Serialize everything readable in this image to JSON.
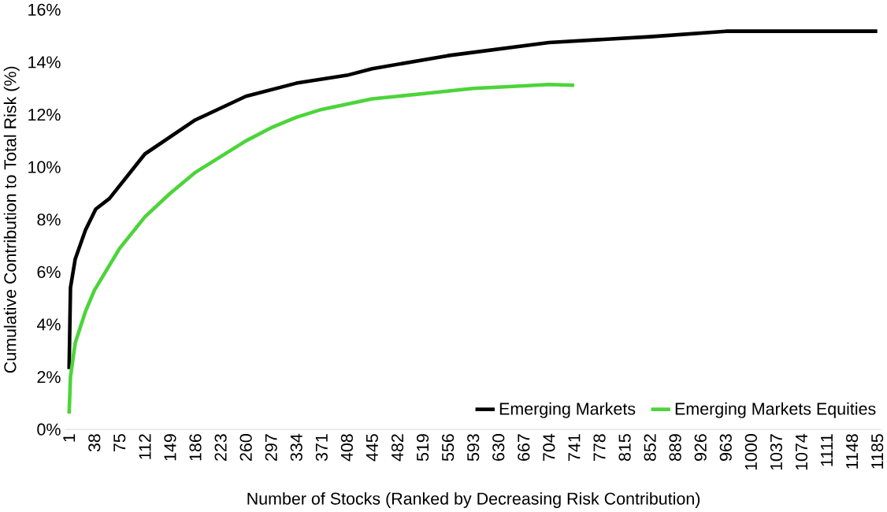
{
  "chart_data": {
    "type": "line",
    "xlabel": "Number of Stocks (Ranked by Decreasing Risk Contribution)",
    "ylabel": "Cumulative Contribution to Total Risk (%)",
    "xlim": [
      -5,
      1192
    ],
    "ylim": [
      0,
      16
    ],
    "xticks": [
      1,
      38,
      75,
      112,
      149,
      186,
      223,
      260,
      297,
      334,
      371,
      408,
      445,
      482,
      519,
      556,
      593,
      630,
      667,
      704,
      741,
      778,
      815,
      852,
      889,
      926,
      963,
      1000,
      1037,
      1074,
      1111,
      1148,
      1185
    ],
    "yticks": [
      {
        "value": 0,
        "label": "0%"
      },
      {
        "value": 2,
        "label": "2%"
      },
      {
        "value": 4,
        "label": "4%"
      },
      {
        "value": 6,
        "label": "6%"
      },
      {
        "value": 8,
        "label": "8%"
      },
      {
        "value": 10,
        "label": "10%"
      },
      {
        "value": 12,
        "label": "12%"
      },
      {
        "value": 14,
        "label": "14%"
      },
      {
        "value": 16,
        "label": "16%"
      }
    ],
    "grid": false,
    "legend": "bottom right",
    "marker": "none",
    "line_style": "solid",
    "series": [
      {
        "name": "Emerging Markets",
        "color": "#000000",
        "x": [
          1,
          3,
          10,
          25,
          40,
          60,
          112,
          186,
          260,
          334,
          408,
          445,
          556,
          704,
          852,
          963,
          1185
        ],
        "values": [
          2.3,
          5.4,
          6.5,
          7.6,
          8.4,
          8.8,
          10.5,
          11.8,
          12.7,
          13.2,
          13.5,
          13.75,
          14.25,
          14.75,
          14.97,
          15.18,
          15.18
        ]
      },
      {
        "name": "Emerging Markets Equities",
        "color": "#4cd43a",
        "x": [
          1,
          3,
          10,
          25,
          38,
          75,
          112,
          149,
          186,
          223,
          260,
          297,
          334,
          371,
          408,
          445,
          519,
          593,
          667,
          704,
          741
        ],
        "values": [
          0.6,
          2.0,
          3.3,
          4.5,
          5.3,
          6.9,
          8.1,
          9.0,
          9.8,
          10.4,
          11.0,
          11.5,
          11.9,
          12.2,
          12.4,
          12.6,
          12.8,
          13.0,
          13.1,
          13.15,
          13.12
        ]
      }
    ]
  }
}
